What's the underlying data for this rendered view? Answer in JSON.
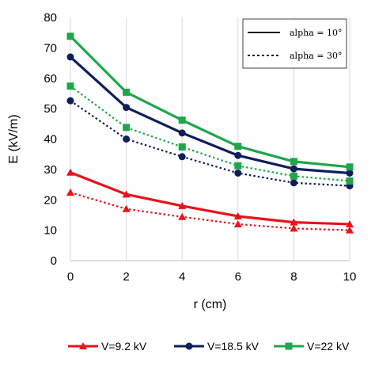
{
  "chart_data": {
    "type": "line",
    "xlabel": "r (cm)",
    "ylabel": "E (kV/m)",
    "xlim": [
      0,
      10
    ],
    "ylim": [
      0,
      80
    ],
    "x_ticks": [
      "0",
      "2",
      "4",
      "6",
      "8",
      "10"
    ],
    "y_ticks": [
      "0",
      "10",
      "20",
      "30",
      "40",
      "50",
      "60",
      "70",
      "80"
    ],
    "grid": "vertical",
    "x": [
      0,
      2,
      4,
      6,
      8,
      10
    ],
    "series": [
      {
        "name": "V=9.2 kV",
        "marker": "triangle",
        "color": "#e8131b",
        "alpha": 10,
        "values": [
          29.0,
          21.8,
          18.0,
          14.6,
          12.6,
          12.0
        ]
      },
      {
        "name": "V=9.2 kV",
        "marker": "triangle",
        "color": "#e8131b",
        "alpha": 30,
        "values": [
          22.4,
          17.0,
          14.4,
          12.0,
          10.6,
          10.0
        ]
      },
      {
        "name": "V=18.5 kV",
        "marker": "circle",
        "color": "#0f1f5c",
        "alpha": 10,
        "values": [
          67.0,
          50.4,
          42.0,
          34.6,
          30.2,
          28.8
        ]
      },
      {
        "name": "V=18.5 kV",
        "marker": "circle",
        "color": "#0f1f5c",
        "alpha": 30,
        "values": [
          52.6,
          40.0,
          34.2,
          28.8,
          25.6,
          24.6
        ]
      },
      {
        "name": "V=22 kV",
        "marker": "square",
        "color": "#1fa64a",
        "alpha": 10,
        "values": [
          73.8,
          55.4,
          46.2,
          37.6,
          32.6,
          30.8
        ]
      },
      {
        "name": "V=22 kV",
        "marker": "square",
        "color": "#1fa64a",
        "alpha": 30,
        "values": [
          57.4,
          43.8,
          37.4,
          31.2,
          27.8,
          26.2
        ]
      }
    ],
    "legend": {
      "placement": "bottom",
      "entries": [
        {
          "label": "V=9.2 kV",
          "marker": "triangle",
          "color": "#e8131b"
        },
        {
          "label": "V=18.5 kV",
          "marker": "circle",
          "color": "#0f1f5c"
        },
        {
          "label": "V=22 kV",
          "marker": "square",
          "color": "#1fa64a"
        }
      ]
    },
    "line_style_legend": {
      "placement": "top-right",
      "entries": [
        {
          "label": "alpha = 10°",
          "style": "solid"
        },
        {
          "label": "alpha = 30°",
          "style": "dotted"
        }
      ]
    }
  }
}
